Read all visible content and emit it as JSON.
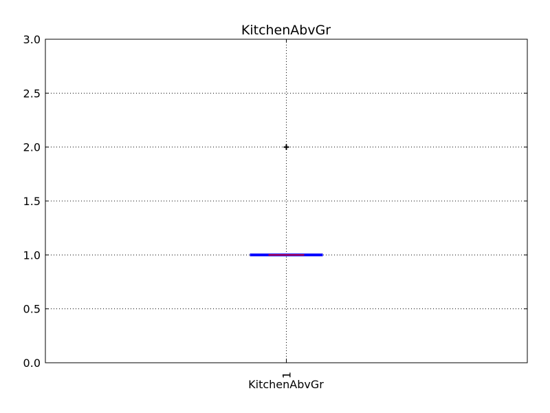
{
  "chart_data": {
    "type": "box",
    "title": "KitchenAbvGr",
    "xlabel": "KitchenAbvGr",
    "ylabel": "",
    "ylim": [
      0.0,
      3.0
    ],
    "yticks": [
      "0.0",
      "0.5",
      "1.0",
      "1.5",
      "2.0",
      "2.5",
      "3.0"
    ],
    "xticks": [
      "1"
    ],
    "grid": true,
    "series": [
      {
        "position": 1,
        "min": 1.0,
        "q1": 1.0,
        "median": 1.0,
        "q3": 1.0,
        "max": 1.0,
        "outliers": [
          2.0
        ]
      }
    ],
    "colors": {
      "box": "#0000ff",
      "median": "#ff0000",
      "whisker": "#0000ff",
      "flier": "#000000",
      "grid": "#000000"
    }
  }
}
